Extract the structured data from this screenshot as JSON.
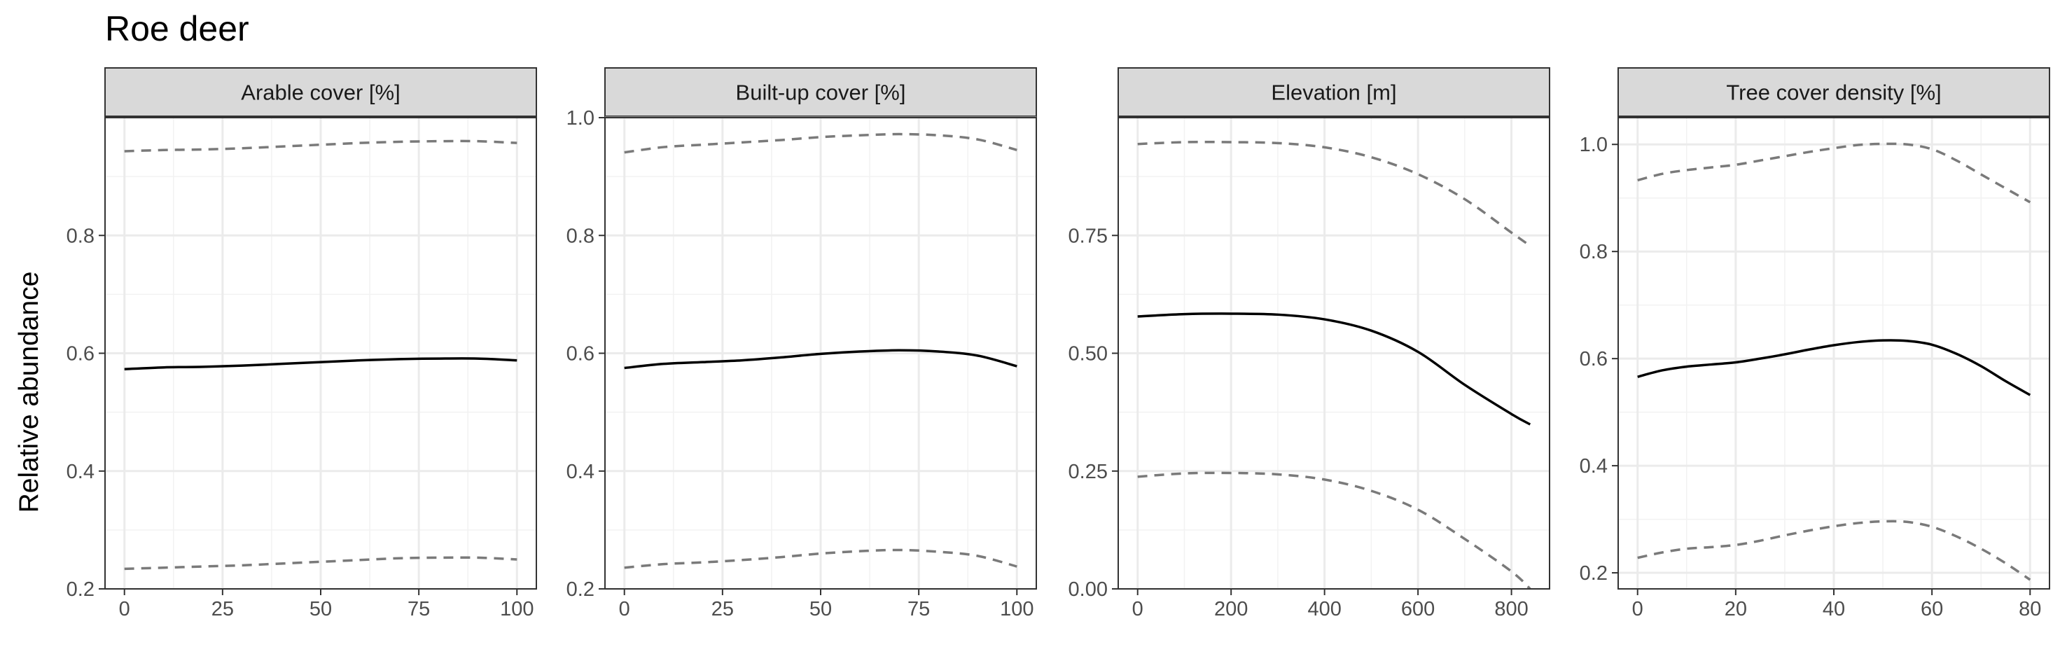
{
  "chart_data": {
    "type": "line",
    "title": "Roe deer",
    "ylabel": "Relative abundance",
    "legend": "none",
    "grid": true,
    "series_style": {
      "estimate": {
        "color": "#000000",
        "dash": "solid"
      },
      "lower": {
        "color": "#7a7a7a",
        "dash": "dashed"
      },
      "upper": {
        "color": "#7a7a7a",
        "dash": "dashed"
      }
    },
    "panels": [
      {
        "facet": "Arable cover [%]",
        "xlim": [
          0,
          100
        ],
        "ylim": [
          0.2,
          1.0
        ],
        "xticks": [
          0,
          25,
          50,
          75,
          100
        ],
        "xtick_labels": [
          "0",
          "25",
          "50",
          "75",
          "100"
        ],
        "yticks": [
          0.2,
          0.4,
          0.6,
          0.8
        ],
        "ytick_labels": [
          "0.2",
          "0.4",
          "0.6",
          "0.8"
        ],
        "x": [
          0,
          10,
          20,
          30,
          40,
          50,
          60,
          70,
          80,
          90,
          100
        ],
        "estimate": [
          0.573,
          0.576,
          0.577,
          0.579,
          0.582,
          0.585,
          0.588,
          0.59,
          0.591,
          0.591,
          0.588
        ],
        "lower": [
          0.234,
          0.236,
          0.238,
          0.24,
          0.243,
          0.246,
          0.249,
          0.252,
          0.253,
          0.253,
          0.25
        ],
        "upper": [
          0.943,
          0.945,
          0.946,
          0.948,
          0.951,
          0.954,
          0.957,
          0.959,
          0.96,
          0.96,
          0.957
        ]
      },
      {
        "facet": "Built-up cover [%]",
        "xlim": [
          0,
          100
        ],
        "ylim": [
          0.2,
          1.0
        ],
        "xticks": [
          0,
          25,
          50,
          75,
          100
        ],
        "xtick_labels": [
          "0",
          "25",
          "50",
          "75",
          "100"
        ],
        "yticks": [
          0.2,
          0.4,
          0.6,
          0.8,
          1.0
        ],
        "ytick_labels": [
          "0.2",
          "0.4",
          "0.6",
          "0.8",
          "1.0"
        ],
        "x": [
          0,
          10,
          20,
          30,
          40,
          50,
          60,
          70,
          80,
          90,
          100
        ],
        "estimate": [
          0.575,
          0.582,
          0.585,
          0.588,
          0.593,
          0.599,
          0.603,
          0.605,
          0.603,
          0.596,
          0.578
        ],
        "lower": [
          0.236,
          0.242,
          0.245,
          0.249,
          0.254,
          0.26,
          0.264,
          0.266,
          0.263,
          0.256,
          0.238
        ],
        "upper": [
          0.941,
          0.95,
          0.954,
          0.958,
          0.962,
          0.967,
          0.97,
          0.972,
          0.97,
          0.963,
          0.945
        ]
      },
      {
        "facet": "Elevation [m]",
        "xlim": [
          0,
          840
        ],
        "ylim": [
          0,
          1.0
        ],
        "xticks": [
          0,
          200,
          400,
          600,
          800
        ],
        "xtick_labels": [
          "0",
          "200",
          "400",
          "600",
          "800"
        ],
        "yticks": [
          0,
          0.25,
          0.5,
          0.75
        ],
        "ytick_labels": [
          "0.00",
          "0.25",
          "0.50",
          "0.75"
        ],
        "x": [
          0,
          100,
          200,
          300,
          400,
          500,
          600,
          700,
          800,
          840
        ],
        "estimate": [
          0.578,
          0.583,
          0.584,
          0.582,
          0.572,
          0.548,
          0.503,
          0.433,
          0.371,
          0.349
        ],
        "lower": [
          0.238,
          0.245,
          0.246,
          0.243,
          0.232,
          0.208,
          0.168,
          0.106,
          0.037,
          0.0
        ],
        "upper": [
          0.944,
          0.948,
          0.948,
          0.946,
          0.937,
          0.916,
          0.88,
          0.827,
          0.756,
          0.728
        ]
      },
      {
        "facet": "Tree cover density [%]",
        "xlim": [
          0,
          80
        ],
        "ylim": [
          0.17,
          1.05
        ],
        "xticks": [
          0,
          20,
          40,
          60,
          80
        ],
        "xtick_labels": [
          "0",
          "20",
          "40",
          "60",
          "80"
        ],
        "yticks": [
          0.2,
          0.4,
          0.6,
          0.8,
          1.0
        ],
        "ytick_labels": [
          "0.2",
          "0.4",
          "0.6",
          "0.8",
          "1.0"
        ],
        "x": [
          0,
          5,
          10,
          15,
          20,
          25,
          30,
          35,
          40,
          45,
          50,
          55,
          60,
          65,
          70,
          75,
          80
        ],
        "estimate": [
          0.566,
          0.578,
          0.585,
          0.589,
          0.593,
          0.6,
          0.608,
          0.617,
          0.625,
          0.631,
          0.634,
          0.633,
          0.626,
          0.609,
          0.586,
          0.558,
          0.532
        ],
        "lower": [
          0.228,
          0.238,
          0.245,
          0.248,
          0.252,
          0.26,
          0.27,
          0.279,
          0.287,
          0.293,
          0.296,
          0.295,
          0.286,
          0.268,
          0.245,
          0.218,
          0.187
        ],
        "upper": [
          0.933,
          0.945,
          0.952,
          0.957,
          0.962,
          0.97,
          0.978,
          0.986,
          0.993,
          0.999,
          1.001,
          1.0,
          0.991,
          0.97,
          0.944,
          0.918,
          0.892
        ]
      }
    ]
  }
}
